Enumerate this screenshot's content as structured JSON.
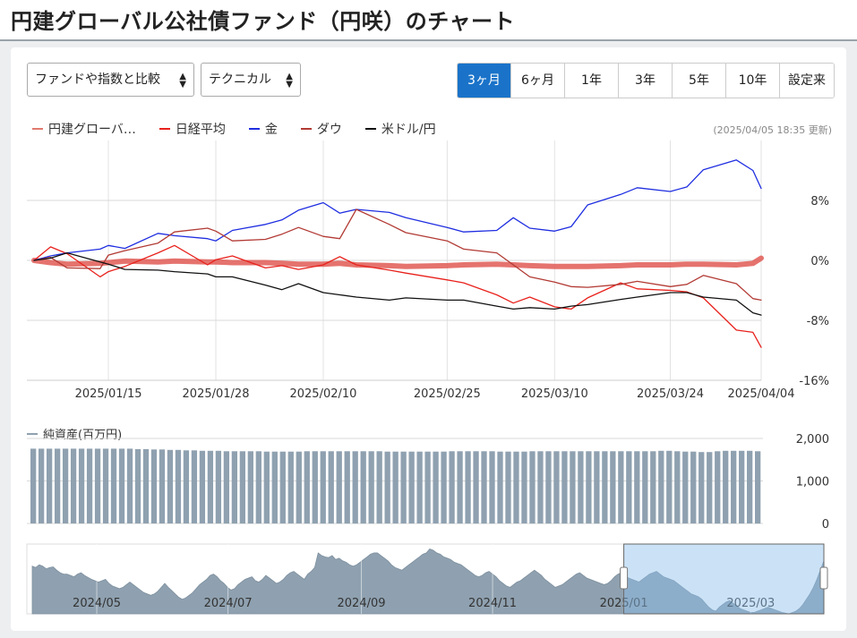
{
  "page": {
    "title": "円建グローバル公社債ファンド（円咲）のチャート"
  },
  "controls": {
    "compare_select": "ファンドや指数と比較",
    "tech_select": "テクニカル",
    "periods": [
      "3ヶ月",
      "6ヶ月",
      "1年",
      "3年",
      "5年",
      "10年",
      "設定来"
    ],
    "active_period": "3ヶ月"
  },
  "legend": [
    {
      "label": "円建グローバ…",
      "color": "#e07a6e"
    },
    {
      "label": "日経平均",
      "color": "#e8211c"
    },
    {
      "label": "金",
      "color": "#1f2ee0"
    },
    {
      "label": "ダウ",
      "color": "#b23a34"
    },
    {
      "label": "米ドル/円",
      "color": "#111111"
    }
  ],
  "updated": "(2025/04/05 18:35 更新)",
  "nav": {
    "label": "純資産(百万円)"
  },
  "chart_data": [
    {
      "type": "line",
      "x": [
        "2025/01/06",
        "2025/01/08",
        "2025/01/10",
        "2025/01/14",
        "2025/01/15",
        "2025/01/17",
        "2025/01/21",
        "2025/01/23",
        "2025/01/27",
        "2025/01/28",
        "2025/01/30",
        "2025/02/03",
        "2025/02/05",
        "2025/02/07",
        "2025/02/10",
        "2025/02/12",
        "2025/02/14",
        "2025/02/18",
        "2025/02/20",
        "2025/02/25",
        "2025/02/27",
        "2025/03/03",
        "2025/03/05",
        "2025/03/07",
        "2025/03/10",
        "2025/03/12",
        "2025/03/14",
        "2025/03/18",
        "2025/03/20",
        "2025/03/24",
        "2025/03/26",
        "2025/03/28",
        "2025/04/01",
        "2025/04/03",
        "2025/04/04"
      ],
      "xticks": [
        "2025/01/15",
        "2025/01/28",
        "2025/02/10",
        "2025/02/25",
        "2025/03/10",
        "2025/03/24",
        "2025/04/04"
      ],
      "yticks": [
        "8%",
        "0%",
        "-8%",
        "-16%"
      ],
      "ylim": [
        -16,
        16
      ],
      "grid": true,
      "legend": "top-left",
      "series": [
        {
          "name": "円建グローバ…",
          "color": "#e05a55",
          "width": 6,
          "values": [
            0,
            -0.3,
            -0.5,
            -0.4,
            -0.3,
            -0.1,
            -0.2,
            -0.1,
            -0.2,
            -0.2,
            -0.3,
            -0.3,
            -0.4,
            -0.5,
            -0.5,
            -0.4,
            -0.6,
            -0.7,
            -0.8,
            -0.7,
            -0.6,
            -0.5,
            -0.6,
            -0.7,
            -0.8,
            -0.8,
            -0.8,
            -0.7,
            -0.6,
            -0.6,
            -0.5,
            -0.5,
            -0.6,
            -0.4,
            0.3
          ]
        },
        {
          "name": "日経平均",
          "color": "#e8211c",
          "width": 1.3,
          "values": [
            0,
            1.8,
            0.9,
            -2.2,
            -1.5,
            -0.8,
            1.0,
            2.0,
            -0.6,
            0.1,
            0.6,
            -1.0,
            -0.7,
            -1.2,
            -0.6,
            0.5,
            -0.6,
            -1.3,
            -1.7,
            -2.6,
            -3.0,
            -4.6,
            -5.7,
            -4.9,
            -6.2,
            -6.5,
            -5.0,
            -3.0,
            -3.8,
            -4.0,
            -4.2,
            -5.0,
            -9.3,
            -9.6,
            -11.6
          ]
        },
        {
          "name": "金",
          "color": "#1f2ee0",
          "width": 1.3,
          "values": [
            0,
            0.6,
            1.0,
            1.5,
            2.0,
            1.6,
            3.6,
            3.3,
            2.9,
            2.6,
            4.0,
            4.8,
            5.4,
            6.7,
            7.7,
            6.3,
            6.8,
            6.4,
            5.7,
            4.4,
            3.8,
            4.0,
            5.7,
            4.3,
            3.9,
            4.5,
            7.4,
            8.8,
            9.7,
            9.2,
            9.8,
            12.1,
            13.4,
            12.0,
            9.6
          ]
        },
        {
          "name": "ダウ",
          "color": "#b23a34",
          "width": 1.3,
          "values": [
            0,
            0.4,
            -1.0,
            -1.1,
            0.7,
            1.3,
            2.3,
            3.8,
            4.3,
            3.9,
            2.6,
            2.8,
            3.5,
            4.4,
            3.2,
            2.9,
            6.8,
            4.8,
            3.7,
            2.6,
            1.5,
            1.0,
            -0.6,
            -2.2,
            -2.9,
            -3.5,
            -3.6,
            -3.2,
            -2.8,
            -3.5,
            -3.2,
            -2.0,
            -3.1,
            -5.1,
            -5.3
          ]
        },
        {
          "name": "米ドル/円",
          "color": "#111111",
          "width": 1.3,
          "values": [
            0,
            0.3,
            1.0,
            -0.2,
            -0.5,
            -1.2,
            -1.3,
            -1.5,
            -1.8,
            -2.2,
            -2.2,
            -3.3,
            -3.9,
            -3.1,
            -4.3,
            -4.6,
            -4.9,
            -5.3,
            -5.0,
            -5.3,
            -5.3,
            -6.1,
            -6.5,
            -6.3,
            -6.5,
            -6.1,
            -5.9,
            -5.2,
            -4.9,
            -4.3,
            -4.3,
            -4.9,
            -5.3,
            -7.0,
            -7.3
          ]
        }
      ]
    },
    {
      "type": "bar",
      "title": "純資産(百万円)",
      "yticks": [
        "2,000",
        "1,000",
        "0"
      ],
      "ylim": [
        0,
        2000
      ],
      "color": "#8fa1b0",
      "values": [
        1760,
        1760,
        1760,
        1760,
        1760,
        1760,
        1760,
        1760,
        1760,
        1760,
        1760,
        1760,
        1760,
        1750,
        1750,
        1740,
        1740,
        1730,
        1730,
        1720,
        1720,
        1710,
        1710,
        1710,
        1700,
        1700,
        1700,
        1700,
        1700,
        1690,
        1690,
        1690,
        1690,
        1690,
        1700,
        1700,
        1700,
        1700,
        1700,
        1700,
        1700,
        1700,
        1700,
        1700,
        1690,
        1690,
        1690,
        1690,
        1690,
        1690,
        1690,
        1690,
        1700,
        1700,
        1700,
        1700,
        1700,
        1700,
        1690,
        1690,
        1690,
        1690,
        1700,
        1700,
        1700,
        1700,
        1700,
        1700,
        1700,
        1700,
        1700,
        1700,
        1700,
        1700,
        1700,
        1700,
        1700,
        1700,
        1710,
        1710,
        1700,
        1690,
        1690,
        1680,
        1680,
        1700,
        1710,
        1710,
        1710,
        1710,
        1700
      ]
    },
    {
      "type": "area",
      "xticks": [
        "2024/05",
        "2024/07",
        "2024/09",
        "2024/11",
        "2025/01",
        "2025/03"
      ],
      "selected_range": [
        "2025/01",
        "2025/04"
      ],
      "color": "#8fa1b0",
      "values": [
        72,
        70,
        74,
        72,
        68,
        70,
        71,
        66,
        62,
        60,
        60,
        58,
        56,
        60,
        62,
        58,
        55,
        52,
        50,
        48,
        50,
        52,
        46,
        42,
        40,
        38,
        40,
        44,
        48,
        44,
        40,
        36,
        32,
        30,
        28,
        30,
        34,
        40,
        46,
        40,
        35,
        30,
        25,
        22,
        24,
        28,
        32,
        38,
        44,
        48,
        52,
        58,
        60,
        56,
        50,
        46,
        40,
        36,
        38,
        44,
        48,
        52,
        54,
        56,
        50,
        48,
        52,
        58,
        54,
        50,
        46,
        48,
        52,
        58,
        62,
        64,
        60,
        56,
        52,
        60,
        64,
        70,
        92,
        88,
        86,
        85,
        88,
        82,
        84,
        80,
        78,
        74,
        72,
        74,
        78,
        82,
        86,
        90,
        92,
        92,
        88,
        84,
        80,
        74,
        70,
        68,
        66,
        70,
        74,
        78,
        82,
        86,
        90,
        92,
        98,
        96,
        92,
        90,
        86,
        84,
        82,
        78,
        76,
        74,
        70,
        66,
        62,
        58,
        56,
        58,
        62,
        64,
        60,
        56,
        50,
        46,
        42,
        40,
        44,
        48,
        50,
        54,
        58,
        62,
        66,
        62,
        58,
        52,
        48,
        44,
        40,
        42,
        44,
        48,
        52,
        56,
        60,
        62,
        58,
        54,
        52,
        50,
        48,
        46,
        44,
        46,
        50,
        56,
        60,
        62,
        58,
        54,
        52,
        50,
        48,
        52,
        56,
        60,
        62,
        64,
        60,
        56,
        54,
        52,
        50,
        46,
        42,
        38,
        34,
        30,
        28,
        26,
        22,
        16,
        10,
        6,
        4,
        10,
        14,
        18,
        20,
        16,
        12,
        8,
        6,
        4,
        2,
        2,
        4,
        6,
        8,
        10,
        8,
        6,
        4,
        2,
        1,
        0,
        2,
        4,
        8,
        14,
        22,
        30,
        40,
        52,
        66,
        80
      ]
    }
  ]
}
